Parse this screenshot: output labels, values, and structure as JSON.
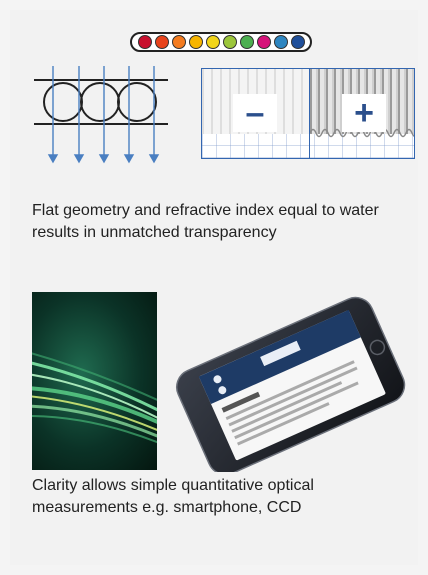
{
  "colors": {
    "dots": [
      "#c8102e",
      "#e8431b",
      "#f47c20",
      "#f7b500",
      "#f2d51a",
      "#9cc63b",
      "#4caf50",
      "#d6127a",
      "#2e86c1",
      "#1f4f9a"
    ],
    "accent_blue": "#3366b0",
    "sign_blue": "#2b4f8c",
    "arrow_blue": "#4a7fc1"
  },
  "panel": {
    "minus": "–",
    "plus": "+"
  },
  "captions": {
    "first": "Flat geometry and refractive index equal to water results in unmatched transparency",
    "second": "Clarity allows simple quantitative optical measurements e.g. smartphone, CCD"
  },
  "icons": [
    "color-scale-dots",
    "light-transmission-diagram",
    "fiber-photo",
    "smartphone-image"
  ]
}
